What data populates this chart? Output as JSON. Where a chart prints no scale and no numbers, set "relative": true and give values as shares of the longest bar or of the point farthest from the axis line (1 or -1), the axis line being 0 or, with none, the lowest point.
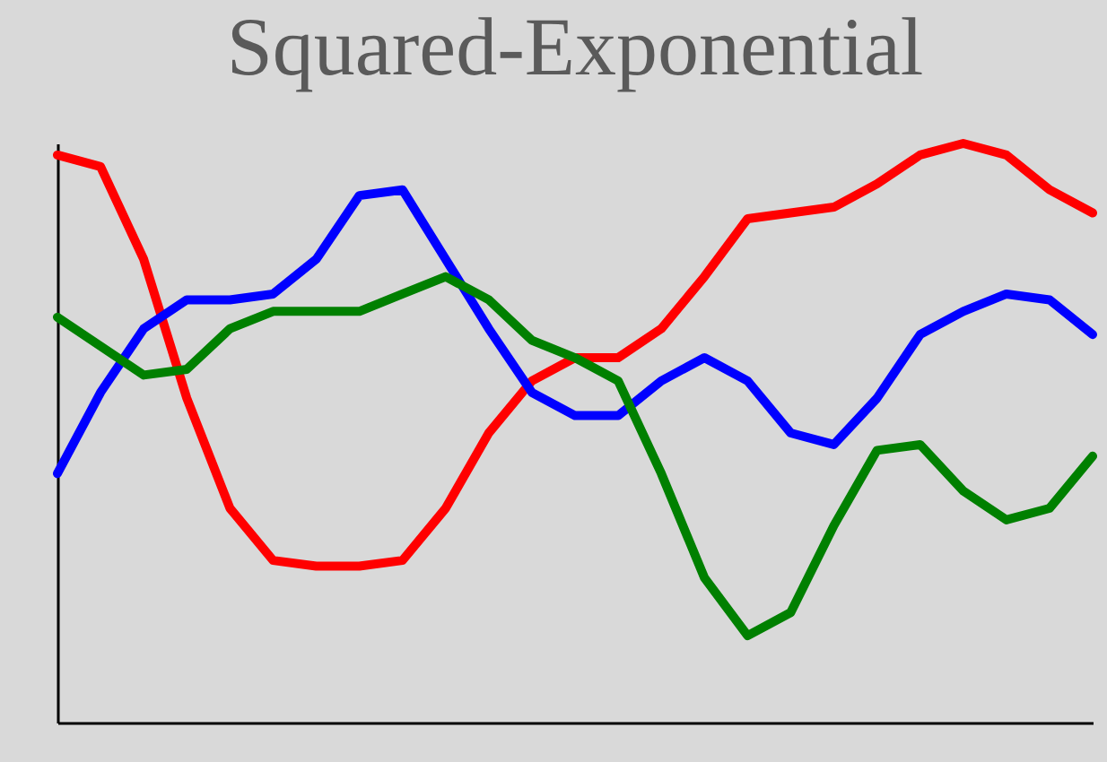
{
  "chart_data": {
    "type": "line",
    "title": "Squared-Exponential",
    "relative": true,
    "categories": [
      null,
      null,
      null,
      null,
      null,
      null,
      null,
      null,
      null,
      null,
      null,
      null,
      null,
      null,
      null,
      null,
      null,
      null,
      null,
      null,
      null,
      null,
      null,
      null,
      null
    ],
    "series": [
      {
        "color": "#ff0000",
        "values": [
          0.98,
          0.96,
          0.8,
          0.56,
          0.37,
          0.28,
          0.27,
          0.27,
          0.28,
          0.37,
          0.5,
          0.59,
          0.63,
          0.63,
          0.68,
          0.77,
          0.87,
          0.88,
          0.89,
          0.93,
          0.98,
          1.0,
          0.98,
          0.92,
          0.88
        ]
      },
      {
        "color": "#0000ff",
        "values": [
          0.43,
          0.57,
          0.68,
          0.73,
          0.73,
          0.74,
          0.8,
          0.91,
          0.92,
          0.8,
          0.68,
          0.57,
          0.53,
          0.53,
          0.59,
          0.63,
          0.59,
          0.5,
          0.48,
          0.56,
          0.67,
          0.71,
          0.74,
          0.73,
          0.67
        ]
      },
      {
        "color": "#008000",
        "values": [
          0.7,
          0.65,
          0.6,
          0.61,
          0.68,
          0.71,
          0.71,
          0.71,
          0.74,
          0.77,
          0.73,
          0.66,
          0.63,
          0.59,
          0.43,
          0.25,
          0.15,
          0.19,
          0.34,
          0.47,
          0.48,
          0.4,
          0.35,
          0.37,
          0.46
        ]
      }
    ]
  }
}
